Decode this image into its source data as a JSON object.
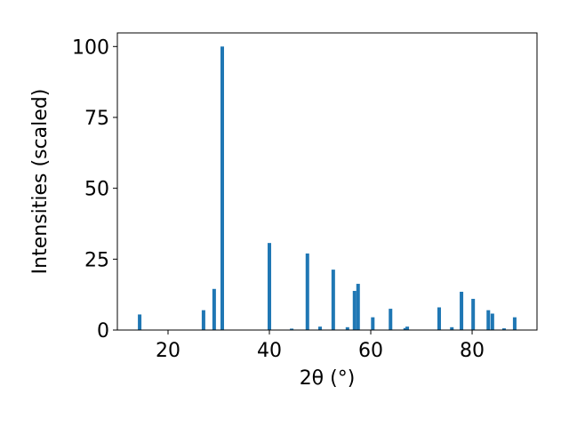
{
  "chart_data": {
    "type": "bar",
    "xlabel": "2θ (°)",
    "ylabel": "Intensities (scaled)",
    "x": [
      14.4,
      27.0,
      29.1,
      30.7,
      40.0,
      44.4,
      47.5,
      50.0,
      52.6,
      55.4,
      56.8,
      57.5,
      60.4,
      63.9,
      66.8,
      67.2,
      73.5,
      76.0,
      77.9,
      80.2,
      83.2,
      84.0,
      86.3,
      88.4
    ],
    "values": [
      5.5,
      7,
      14.5,
      100,
      30.7,
      0.5,
      27,
      1.2,
      21.3,
      1,
      13.8,
      16.3,
      4.5,
      7.5,
      0.7,
      1.2,
      8,
      1,
      13.5,
      11,
      7,
      5.8,
      0.6,
      4.5
    ],
    "color": "#1f77b4",
    "xlim": [
      10,
      92.8
    ],
    "ylim": [
      0,
      104.8
    ],
    "xticks": [
      20,
      40,
      60,
      80
    ],
    "yticks": [
      0,
      25,
      50,
      75,
      100
    ]
  }
}
